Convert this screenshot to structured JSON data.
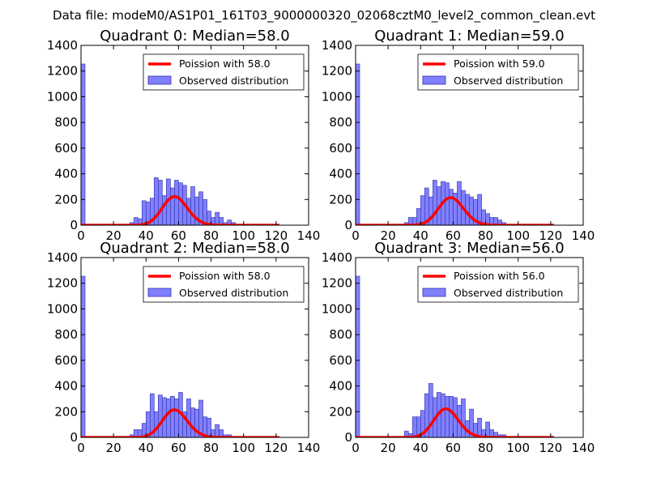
{
  "figure": {
    "suptitle": "Data file: modeM0/AS1P01_161T03_9000000320_02068cztM0_level2_common_clean.evt",
    "colors": {
      "hist_fill": "#8080ff",
      "hist_edge": "#3030a8",
      "poisson_line": "#ff0000"
    }
  },
  "chart_data": [
    {
      "type": "bar",
      "title": "Quadrant 0: Median=58.0",
      "xlim": [
        0,
        140
      ],
      "ylim": [
        0,
        1400
      ],
      "xticks": [
        "0",
        "20",
        "40",
        "60",
        "80",
        "100",
        "120",
        "140"
      ],
      "yticks": [
        "0",
        "200",
        "400",
        "600",
        "800",
        "1000",
        "1200",
        "1400"
      ],
      "legend": [
        "Poission with 58.0",
        "Observed distribution"
      ],
      "legend_position": "top-right",
      "poisson_mean": 58.0,
      "bin_width": 2.5,
      "bins": [
        [
          0,
          1255
        ],
        [
          30,
          20
        ],
        [
          32.5,
          60
        ],
        [
          35,
          50
        ],
        [
          37.5,
          190
        ],
        [
          40,
          180
        ],
        [
          42.5,
          210
        ],
        [
          45,
          370
        ],
        [
          47.5,
          350
        ],
        [
          50,
          230
        ],
        [
          52.5,
          360
        ],
        [
          55,
          290
        ],
        [
          57.5,
          350
        ],
        [
          60,
          330
        ],
        [
          62.5,
          310
        ],
        [
          65,
          210
        ],
        [
          67.5,
          300
        ],
        [
          70,
          220
        ],
        [
          72.5,
          260
        ],
        [
          75,
          200
        ],
        [
          77.5,
          110
        ],
        [
          80,
          60
        ],
        [
          82.5,
          100
        ],
        [
          85,
          60
        ],
        [
          87.5,
          20
        ],
        [
          90,
          40
        ],
        [
          92.5,
          20
        ]
      ]
    },
    {
      "type": "bar",
      "title": "Quadrant 1: Median=59.0",
      "xlim": [
        0,
        140
      ],
      "ylim": [
        0,
        1400
      ],
      "xticks": [
        "0",
        "20",
        "40",
        "60",
        "80",
        "100",
        "120",
        "140"
      ],
      "yticks": [
        "0",
        "200",
        "400",
        "600",
        "800",
        "1000",
        "1200",
        "1400"
      ],
      "legend": [
        "Poission with 59.0",
        "Observed distribution"
      ],
      "legend_position": "top-right",
      "poisson_mean": 59.0,
      "bin_width": 2.5,
      "bins": [
        [
          0,
          1255
        ],
        [
          30,
          20
        ],
        [
          32.5,
          60
        ],
        [
          35,
          60
        ],
        [
          37.5,
          130
        ],
        [
          40,
          230
        ],
        [
          42.5,
          290
        ],
        [
          45,
          220
        ],
        [
          47.5,
          350
        ],
        [
          50,
          300
        ],
        [
          52.5,
          340
        ],
        [
          55,
          330
        ],
        [
          57.5,
          280
        ],
        [
          60,
          250
        ],
        [
          62.5,
          340
        ],
        [
          65,
          270
        ],
        [
          67.5,
          240
        ],
        [
          70,
          220
        ],
        [
          72.5,
          200
        ],
        [
          75,
          240
        ],
        [
          77.5,
          120
        ],
        [
          80,
          90
        ],
        [
          82.5,
          60
        ],
        [
          85,
          60
        ],
        [
          87.5,
          40
        ],
        [
          90,
          20
        ]
      ]
    },
    {
      "type": "bar",
      "title": "Quadrant 2: Median=58.0",
      "xlim": [
        0,
        140
      ],
      "ylim": [
        0,
        1400
      ],
      "xticks": [
        "0",
        "20",
        "40",
        "60",
        "80",
        "100",
        "120",
        "140"
      ],
      "yticks": [
        "0",
        "200",
        "400",
        "600",
        "800",
        "1000",
        "1200",
        "1400"
      ],
      "legend": [
        "Poission with 58.0",
        "Observed distribution"
      ],
      "legend_position": "top-right",
      "poisson_mean": 58.0,
      "bin_width": 2.5,
      "bins": [
        [
          0,
          1255
        ],
        [
          30,
          20
        ],
        [
          32.5,
          60
        ],
        [
          35,
          60
        ],
        [
          37.5,
          110
        ],
        [
          40,
          200
        ],
        [
          42.5,
          340
        ],
        [
          45,
          200
        ],
        [
          47.5,
          330
        ],
        [
          50,
          310
        ],
        [
          52.5,
          300
        ],
        [
          55,
          320
        ],
        [
          57.5,
          300
        ],
        [
          60,
          350
        ],
        [
          62.5,
          200
        ],
        [
          65,
          300
        ],
        [
          67.5,
          230
        ],
        [
          70,
          220
        ],
        [
          72.5,
          290
        ],
        [
          75,
          160
        ],
        [
          77.5,
          150
        ],
        [
          80,
          60
        ],
        [
          82.5,
          100
        ],
        [
          85,
          60
        ],
        [
          87.5,
          20
        ],
        [
          90,
          20
        ]
      ]
    },
    {
      "type": "bar",
      "title": "Quadrant 3: Median=56.0",
      "xlim": [
        0,
        140
      ],
      "ylim": [
        0,
        1400
      ],
      "xticks": [
        "0",
        "20",
        "40",
        "60",
        "80",
        "100",
        "120",
        "140"
      ],
      "yticks": [
        "0",
        "200",
        "400",
        "600",
        "800",
        "1000",
        "1200",
        "1400"
      ],
      "legend": [
        "Poission with 56.0",
        "Observed distribution"
      ],
      "legend_position": "top-right",
      "poisson_mean": 56.0,
      "bin_width": 2.5,
      "bins": [
        [
          0,
          1255
        ],
        [
          30,
          50
        ],
        [
          32.5,
          30
        ],
        [
          35,
          160
        ],
        [
          37.5,
          160
        ],
        [
          40,
          210
        ],
        [
          42.5,
          340
        ],
        [
          45,
          420
        ],
        [
          47.5,
          310
        ],
        [
          50,
          350
        ],
        [
          52.5,
          340
        ],
        [
          55,
          320
        ],
        [
          57.5,
          320
        ],
        [
          60,
          310
        ],
        [
          62.5,
          250
        ],
        [
          65,
          300
        ],
        [
          67.5,
          130
        ],
        [
          70,
          220
        ],
        [
          72.5,
          110
        ],
        [
          75,
          150
        ],
        [
          77.5,
          60
        ],
        [
          80,
          120
        ],
        [
          82.5,
          60
        ],
        [
          85,
          40
        ],
        [
          87.5,
          20
        ],
        [
          90,
          20
        ]
      ]
    }
  ]
}
